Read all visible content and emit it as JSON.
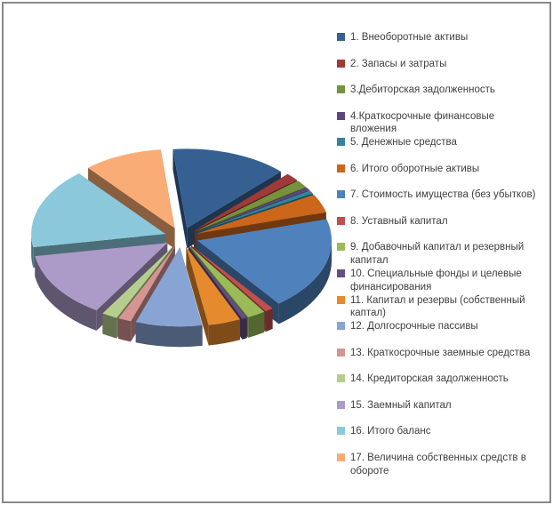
{
  "chart_data": {
    "type": "pie",
    "style": "3d-exploded",
    "title": "",
    "legend_position": "right",
    "categories": [
      "1. Внеоборотные активы",
      "2. Запасы и затраты",
      "3.Дебиторская задолженность",
      "4.Краткосрочные финансовые\nвложения",
      "5. Денежные средства",
      "6. Итого оборотные активы",
      "7. Стоимость имущества (без убытков)",
      "8. Уставный капитал",
      "9. Добавочный  капитал и резервный\nкапитал",
      "10. Специальные фонды и целевые\nфинансирования",
      "11. Капитал и резервы (собственный\nкаптал)",
      "12. Долгосрочные пассивы",
      "13. Краткосрочные заемные средства",
      "14. Кредиторская задолженность",
      "15. Заемный капитал",
      "16. Итого баланс",
      "17. Величина собственных средств в\nобороте"
    ],
    "values": [
      14.0,
      1.6,
      1.6,
      0.6,
      0.7,
      3.8,
      19.0,
      1.0,
      2.2,
      0.6,
      3.9,
      8.0,
      1.6,
      1.9,
      13.5,
      16.5,
      9.5
    ],
    "colors": [
      "#366092",
      "#9E3B39",
      "#76923C",
      "#5B477A",
      "#31849B",
      "#CB661B",
      "#4F81BD",
      "#C0504D",
      "#9BBB59",
      "#644E83",
      "#E68A2E",
      "#88A4D4",
      "#D59593",
      "#B5CE8E",
      "#AC9BC9",
      "#8BC8DC",
      "#F9AC75"
    ]
  },
  "frame": {
    "border_color": "#898989",
    "background": "#ffffff"
  }
}
